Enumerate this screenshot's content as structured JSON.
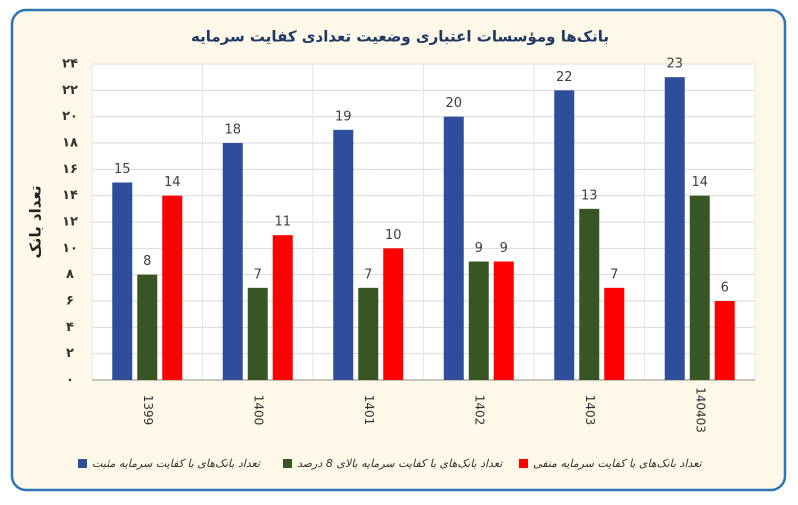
{
  "chart_data": {
    "type": "bar",
    "title": "بانک‌ها ومؤسسات اعتباری وضعیت تعدادی کفایت سرمایه",
    "y_label": "تعداد بانک",
    "categories": [
      "1399",
      "1400",
      "1401",
      "1402",
      "1403",
      "140403"
    ],
    "series": [
      {
        "name": "تعداد بانک‌های با کفایت سرمایه مثبت",
        "color": "#2e4d9b",
        "values": [
          15,
          18,
          19,
          20,
          22,
          23
        ]
      },
      {
        "name": "تعداد بانک‌های با کفایت سرمایه بالای 8 درصد",
        "color": "#375623",
        "values": [
          8,
          7,
          7,
          9,
          13,
          14
        ]
      },
      {
        "name": "تعداد بانک‌های با کفایت سرمایه منفی",
        "color": "#ff0000",
        "values": [
          14,
          11,
          10,
          9,
          7,
          6
        ]
      }
    ],
    "ylim": [
      0,
      24
    ],
    "yticks": [
      {
        "value": 0,
        "label": "۰"
      },
      {
        "value": 2,
        "label": "۲"
      },
      {
        "value": 4,
        "label": "۴"
      },
      {
        "value": 6,
        "label": "۶"
      },
      {
        "value": 8,
        "label": "۸"
      },
      {
        "value": 10,
        "label": "۱۰"
      },
      {
        "value": 12,
        "label": "۱۲"
      },
      {
        "value": 14,
        "label": "۱۴"
      },
      {
        "value": 16,
        "label": "۱۶"
      },
      {
        "value": 18,
        "label": "۱۸"
      },
      {
        "value": 20,
        "label": "۲۰"
      },
      {
        "value": 22,
        "label": "۲۲"
      },
      {
        "value": 24,
        "label": "۲۴"
      }
    ],
    "grid": true,
    "legend": "bottom"
  }
}
